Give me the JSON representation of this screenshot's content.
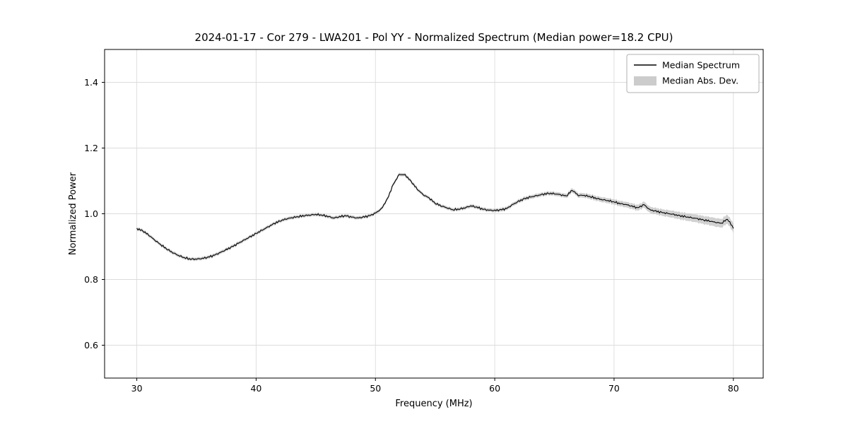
{
  "page": {
    "background": "#ffffff"
  },
  "chart_data": {
    "type": "line",
    "title": "2024-01-17 - Cor 279 - LWA201 - Pol YY - Normalized Spectrum (Median power=18.2 CPU)",
    "xlabel": "Frequency (MHz)",
    "ylabel": "Normalized Power",
    "xlim": [
      27.3,
      82.5
    ],
    "ylim": [
      0.5,
      1.5
    ],
    "xticks": [
      30,
      40,
      50,
      60,
      70,
      80
    ],
    "yticks": [
      0.6,
      0.8,
      1.0,
      1.2,
      1.4
    ],
    "grid": true,
    "legend": {
      "position": "upper right",
      "entries": [
        {
          "label": "Median Spectrum",
          "type": "line",
          "color": "#000000"
        },
        {
          "label": "Median Abs. Dev.",
          "type": "patch",
          "color": "#cccccc"
        }
      ]
    },
    "series": [
      {
        "name": "Median Spectrum",
        "x": [
          30.0,
          30.5,
          31.0,
          31.5,
          32.0,
          32.5,
          33.0,
          33.5,
          34.0,
          34.5,
          35.0,
          35.5,
          36.0,
          36.5,
          37.0,
          37.5,
          38.0,
          38.5,
          39.0,
          39.5,
          40.0,
          40.5,
          41.0,
          41.5,
          42.0,
          42.5,
          43.0,
          43.5,
          44.0,
          44.5,
          45.0,
          45.5,
          46.0,
          46.5,
          47.0,
          47.5,
          48.0,
          48.5,
          49.0,
          49.5,
          50.0,
          50.5,
          51.0,
          51.5,
          52.0,
          52.5,
          53.0,
          53.5,
          54.0,
          54.5,
          55.0,
          55.5,
          56.0,
          56.5,
          57.0,
          57.5,
          58.0,
          58.5,
          59.0,
          59.5,
          60.0,
          60.5,
          61.0,
          61.5,
          62.0,
          62.5,
          63.0,
          63.5,
          64.0,
          64.5,
          65.0,
          65.5,
          66.0,
          66.5,
          67.0,
          67.5,
          68.0,
          68.5,
          69.0,
          69.5,
          70.0,
          70.5,
          71.0,
          71.5,
          72.0,
          72.5,
          73.0,
          73.5,
          74.0,
          74.5,
          75.0,
          75.5,
          76.0,
          76.5,
          77.0,
          77.5,
          78.0,
          78.5,
          79.0,
          79.5,
          80.0
        ],
        "y": [
          0.955,
          0.948,
          0.935,
          0.92,
          0.906,
          0.893,
          0.882,
          0.873,
          0.866,
          0.862,
          0.862,
          0.864,
          0.868,
          0.874,
          0.882,
          0.891,
          0.9,
          0.91,
          0.92,
          0.93,
          0.94,
          0.95,
          0.96,
          0.97,
          0.978,
          0.984,
          0.988,
          0.991,
          0.994,
          0.996,
          0.998,
          0.996,
          0.992,
          0.987,
          0.991,
          0.994,
          0.99,
          0.987,
          0.99,
          0.994,
          1.002,
          1.015,
          1.045,
          1.09,
          1.12,
          1.118,
          1.098,
          1.075,
          1.058,
          1.048,
          1.032,
          1.024,
          1.018,
          1.012,
          1.014,
          1.018,
          1.024,
          1.02,
          1.014,
          1.011,
          1.01,
          1.012,
          1.016,
          1.028,
          1.038,
          1.046,
          1.051,
          1.055,
          1.059,
          1.062,
          1.061,
          1.058,
          1.054,
          1.072,
          1.056,
          1.056,
          1.052,
          1.047,
          1.043,
          1.04,
          1.036,
          1.031,
          1.028,
          1.023,
          1.018,
          1.028,
          1.012,
          1.008,
          1.004,
          1.001,
          0.998,
          0.994,
          0.991,
          0.988,
          0.985,
          0.981,
          0.978,
          0.974,
          0.971,
          0.984,
          0.957
        ]
      }
    ],
    "band": {
      "name": "Median Abs. Dev.",
      "dev_x": [
        30,
        45,
        55,
        65,
        70,
        74,
        77,
        80
      ],
      "dev": [
        0.005,
        0.005,
        0.005,
        0.006,
        0.008,
        0.01,
        0.012,
        0.014
      ]
    },
    "noise_amplitude": 0.0035,
    "colors": {
      "line": "#000000",
      "band": "#c9c9c9",
      "grid": "#dcdcdc",
      "spine": "#000000",
      "legend_border": "#b0b0b0"
    }
  }
}
